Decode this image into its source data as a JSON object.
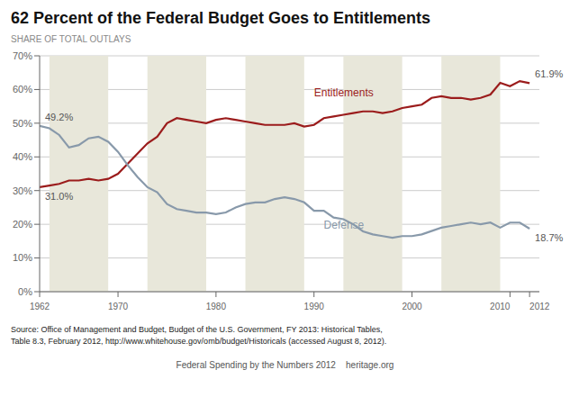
{
  "chart_data": {
    "type": "line",
    "title": "62 Percent of the Federal Budget Goes to Entitlements",
    "subtitle": "SHARE OF TOTAL OUTLAYS",
    "source": [
      "Source: Office of Management and Budget, Budget of the U.S. Government, FY 2013: Historical Tables,",
      "Table 8.3, February 2012, http://www.whitehouse.gov/omb/budget/Historicals (accessed August 8, 2012)."
    ],
    "footer": "Federal Spending by the Numbers 2012    heritage.org",
    "x": [
      1962,
      1963,
      1964,
      1965,
      1966,
      1967,
      1968,
      1969,
      1970,
      1971,
      1972,
      1973,
      1974,
      1975,
      1976,
      1977,
      1978,
      1979,
      1980,
      1981,
      1982,
      1983,
      1984,
      1985,
      1986,
      1987,
      1988,
      1989,
      1990,
      1991,
      1992,
      1993,
      1994,
      1995,
      1996,
      1997,
      1998,
      1999,
      2000,
      2001,
      2002,
      2003,
      2004,
      2005,
      2006,
      2007,
      2008,
      2009,
      2010,
      2011,
      2012
    ],
    "xlim": [
      1962,
      2013
    ],
    "xticks": [
      1962,
      1970,
      1980,
      1990,
      2000,
      2010,
      2012
    ],
    "ylim": [
      0,
      70
    ],
    "yticks": [
      {
        "value": 0,
        "label": "0%"
      },
      {
        "value": 10,
        "label": "10%"
      },
      {
        "value": 20,
        "label": "20%"
      },
      {
        "value": 30,
        "label": "30%"
      },
      {
        "value": 40,
        "label": "40%"
      },
      {
        "value": 50,
        "label": "50%"
      },
      {
        "value": 60,
        "label": "60%"
      },
      {
        "value": 70,
        "label": "70%"
      }
    ],
    "grid": true,
    "bands": [
      [
        1963,
        1969
      ],
      [
        1973,
        1979
      ],
      [
        1983,
        1989
      ],
      [
        1993,
        1999
      ],
      [
        2003,
        2009
      ]
    ],
    "band_color": "#e8e7da",
    "series": [
      {
        "name": "Entitlements",
        "color": "#9b1c1c",
        "values": [
          31.0,
          31.5,
          32.0,
          33.0,
          33.0,
          33.5,
          33.0,
          33.5,
          35.0,
          38.0,
          41.0,
          44.0,
          46.0,
          50.0,
          51.5,
          51.0,
          50.5,
          50.0,
          51.0,
          51.5,
          51.0,
          50.5,
          50.0,
          49.5,
          49.5,
          49.5,
          50.0,
          49.0,
          49.5,
          51.5,
          52.0,
          52.5,
          53.0,
          53.5,
          53.5,
          53.0,
          53.5,
          54.5,
          55.0,
          55.5,
          57.5,
          58.0,
          57.5,
          57.5,
          57.0,
          57.5,
          58.5,
          62.0,
          61.0,
          62.5,
          61.9
        ],
        "label_x": 1990,
        "label_y": 57.0,
        "label_side": "above"
      },
      {
        "name": "Defense",
        "color": "#8899aa",
        "values": [
          49.2,
          48.5,
          46.5,
          42.8,
          43.5,
          45.5,
          46.0,
          44.5,
          41.5,
          37.5,
          34.0,
          31.0,
          29.5,
          26.0,
          24.5,
          24.0,
          23.5,
          23.5,
          23.0,
          23.5,
          25.0,
          26.0,
          26.5,
          26.5,
          27.5,
          28.0,
          27.5,
          26.5,
          24.0,
          24.0,
          22.0,
          21.5,
          20.0,
          17.9,
          17.0,
          16.5,
          16.0,
          16.5,
          16.5,
          17.0,
          18.0,
          19.0,
          19.5,
          20.0,
          20.5,
          20.0,
          20.5,
          19.0,
          20.5,
          20.5,
          18.7
        ],
        "label_x": 1991,
        "label_y": 22.0,
        "label_side": "below"
      }
    ],
    "annotations": [
      {
        "text": "49.2%",
        "x": 1962,
        "y": 49.2,
        "position": "above"
      },
      {
        "text": "31.0%",
        "x": 1962,
        "y": 31.0,
        "position": "below"
      },
      {
        "text": "61.9%",
        "x": 2012,
        "y": 61.9,
        "position": "above"
      },
      {
        "text": "18.7%",
        "x": 2012,
        "y": 18.7,
        "position": "below"
      }
    ]
  }
}
